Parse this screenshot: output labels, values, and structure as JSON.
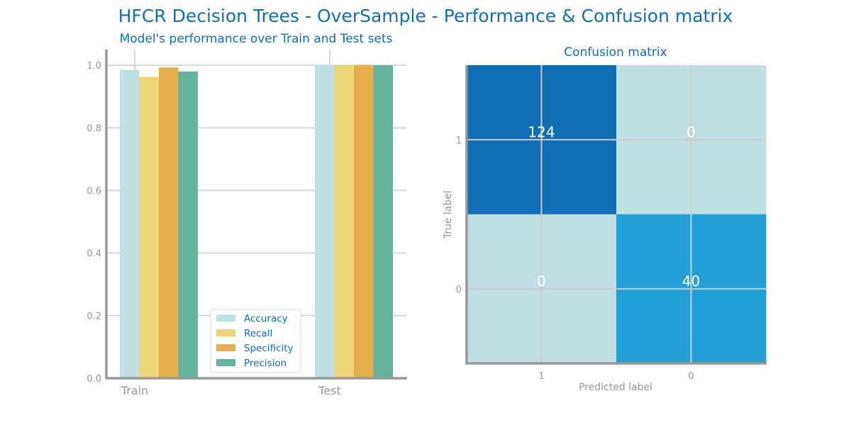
{
  "suptitle": "HFCR Decision Trees - OverSample - Performance & Confusion matrix",
  "colors": {
    "title": "#1070b0",
    "axis": "#999999",
    "tick_text": "#999999",
    "grid": "#cccccc",
    "accuracy": "#bfdfe2",
    "recall": "#ebd574",
    "specificity": "#e8ae4c",
    "precision": "#63b39f",
    "cm_high": "#0e70b2",
    "cm_mid": "#229fd5",
    "cm_low": "#bfdfe2",
    "legend_text": "#1070b0"
  },
  "chart_data": [
    {
      "type": "bar",
      "title": "Model's performance over Train and Test sets",
      "categories": [
        "Train",
        "Test"
      ],
      "series": [
        {
          "name": "Accuracy",
          "values": [
            0.985,
            1.0
          ]
        },
        {
          "name": "Recall",
          "values": [
            0.963,
            1.0
          ]
        },
        {
          "name": "Specificity",
          "values": [
            0.993,
            1.0
          ]
        },
        {
          "name": "Precision",
          "values": [
            0.98,
            1.0
          ]
        }
      ],
      "ylim": [
        0,
        1.05
      ],
      "yticks": [
        "0.0",
        "0.2",
        "0.4",
        "0.6",
        "0.8",
        "1.0"
      ],
      "grid": true,
      "legend_position": "lower center"
    },
    {
      "type": "heatmap",
      "title": "Confusion matrix",
      "xlabel": "Predicted label",
      "ylabel": "True label",
      "x_categories": [
        "1",
        "0"
      ],
      "y_categories": [
        "1",
        "0"
      ],
      "values": [
        [
          124,
          0
        ],
        [
          0,
          40
        ]
      ],
      "grid": true
    }
  ]
}
